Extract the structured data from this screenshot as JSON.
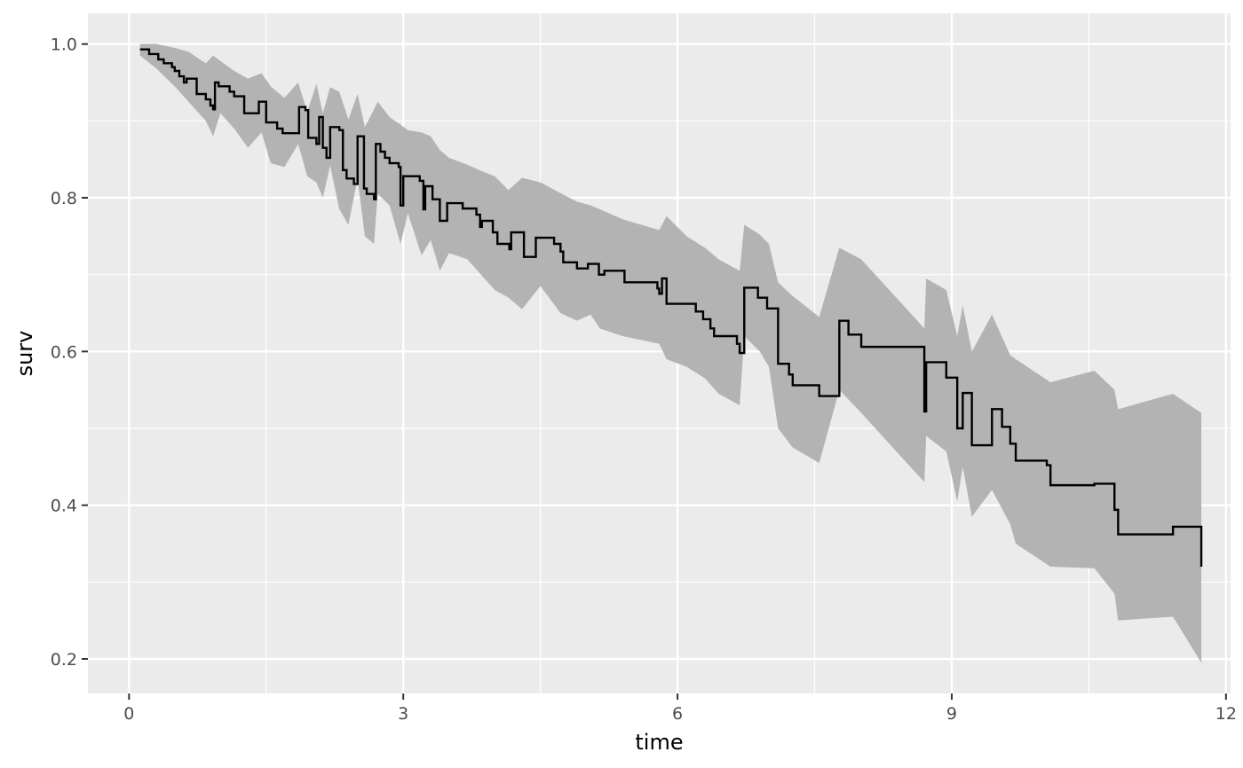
{
  "chart_data": {
    "type": "line",
    "title": "",
    "xlabel": "time",
    "ylabel": "surv",
    "xlim": [
      -0.45,
      12.05
    ],
    "ylim": [
      0.155,
      1.04
    ],
    "x_ticks": [
      0,
      3,
      6,
      9,
      12
    ],
    "y_ticks": [
      0.2,
      0.4,
      0.6,
      0.8,
      1.0
    ],
    "x_tick_labels": [
      "0",
      "3",
      "6",
      "9",
      "12"
    ],
    "y_tick_labels": [
      "0.2",
      "0.4",
      "0.6",
      "0.8",
      "1.0"
    ],
    "grid": true,
    "legend": "none",
    "colors": {
      "panel": "#EBEBEB",
      "grid": "#FFFFFF",
      "ribbon": "#B3B3B3",
      "line": "#000000"
    },
    "series": [
      {
        "values": [
          [
            0.12,
            0.993
          ],
          [
            0.22,
            0.987
          ],
          [
            0.32,
            0.98
          ],
          [
            0.38,
            0.975
          ],
          [
            0.47,
            0.97
          ],
          [
            0.5,
            0.965
          ],
          [
            0.55,
            0.958
          ],
          [
            0.6,
            0.95
          ],
          [
            0.63,
            0.955
          ],
          [
            0.74,
            0.935
          ],
          [
            0.84,
            0.928
          ],
          [
            0.89,
            0.92
          ],
          [
            0.92,
            0.915
          ],
          [
            0.94,
            0.95
          ],
          [
            0.98,
            0.945
          ],
          [
            1.1,
            0.938
          ],
          [
            1.15,
            0.932
          ],
          [
            1.26,
            0.91
          ],
          [
            1.42,
            0.925
          ],
          [
            1.5,
            0.898
          ],
          [
            1.62,
            0.89
          ],
          [
            1.68,
            0.884
          ],
          [
            1.86,
            0.918
          ],
          [
            1.93,
            0.914
          ],
          [
            1.96,
            0.878
          ],
          [
            2.05,
            0.87
          ],
          [
            2.08,
            0.905
          ],
          [
            2.12,
            0.865
          ],
          [
            2.16,
            0.852
          ],
          [
            2.2,
            0.892
          ],
          [
            2.3,
            0.888
          ],
          [
            2.34,
            0.836
          ],
          [
            2.38,
            0.825
          ],
          [
            2.46,
            0.818
          ],
          [
            2.5,
            0.88
          ],
          [
            2.57,
            0.812
          ],
          [
            2.6,
            0.805
          ],
          [
            2.68,
            0.798
          ],
          [
            2.7,
            0.87
          ],
          [
            2.75,
            0.86
          ],
          [
            2.8,
            0.852
          ],
          [
            2.85,
            0.845
          ],
          [
            2.95,
            0.84
          ],
          [
            2.97,
            0.79
          ],
          [
            3.0,
            0.828
          ],
          [
            3.18,
            0.822
          ],
          [
            3.22,
            0.785
          ],
          [
            3.24,
            0.815
          ],
          [
            3.32,
            0.798
          ],
          [
            3.4,
            0.77
          ],
          [
            3.48,
            0.793
          ],
          [
            3.65,
            0.786
          ],
          [
            3.8,
            0.778
          ],
          [
            3.84,
            0.762
          ],
          [
            3.86,
            0.77
          ],
          [
            3.98,
            0.755
          ],
          [
            4.03,
            0.74
          ],
          [
            4.16,
            0.733
          ],
          [
            4.18,
            0.755
          ],
          [
            4.32,
            0.723
          ],
          [
            4.45,
            0.748
          ],
          [
            4.65,
            0.74
          ],
          [
            4.72,
            0.73
          ],
          [
            4.75,
            0.716
          ],
          [
            4.9,
            0.708
          ],
          [
            5.02,
            0.714
          ],
          [
            5.14,
            0.7
          ],
          [
            5.2,
            0.705
          ],
          [
            5.42,
            0.69
          ],
          [
            5.78,
            0.682
          ],
          [
            5.8,
            0.675
          ],
          [
            5.83,
            0.695
          ],
          [
            5.88,
            0.662
          ],
          [
            6.2,
            0.652
          ],
          [
            6.28,
            0.642
          ],
          [
            6.36,
            0.63
          ],
          [
            6.4,
            0.62
          ],
          [
            6.65,
            0.61
          ],
          [
            6.68,
            0.598
          ],
          [
            6.73,
            0.683
          ],
          [
            6.88,
            0.67
          ],
          [
            6.98,
            0.656
          ],
          [
            7.1,
            0.584
          ],
          [
            7.22,
            0.57
          ],
          [
            7.26,
            0.556
          ],
          [
            7.55,
            0.542
          ],
          [
            7.77,
            0.64
          ],
          [
            7.87,
            0.622
          ],
          [
            8.01,
            0.606
          ],
          [
            8.7,
            0.522
          ],
          [
            8.72,
            0.586
          ],
          [
            8.94,
            0.566
          ],
          [
            9.06,
            0.5
          ],
          [
            9.12,
            0.546
          ],
          [
            9.22,
            0.478
          ],
          [
            9.44,
            0.525
          ],
          [
            9.55,
            0.502
          ],
          [
            9.64,
            0.48
          ],
          [
            9.7,
            0.458
          ],
          [
            10.04,
            0.452
          ],
          [
            10.08,
            0.426
          ],
          [
            10.56,
            0.428
          ],
          [
            10.78,
            0.394
          ],
          [
            10.82,
            0.362
          ],
          [
            11.42,
            0.372
          ],
          [
            11.73,
            0.32
          ]
        ],
        "ribbon": [
          [
            0.12,
            0.985,
            1.0
          ],
          [
            0.3,
            0.968,
            1.0
          ],
          [
            0.5,
            0.945,
            0.995
          ],
          [
            0.65,
            0.925,
            0.99
          ],
          [
            0.84,
            0.9,
            0.975
          ],
          [
            0.92,
            0.88,
            0.985
          ],
          [
            1.0,
            0.91,
            0.978
          ],
          [
            1.15,
            0.89,
            0.965
          ],
          [
            1.3,
            0.865,
            0.955
          ],
          [
            1.45,
            0.885,
            0.962
          ],
          [
            1.55,
            0.845,
            0.945
          ],
          [
            1.7,
            0.84,
            0.93
          ],
          [
            1.85,
            0.87,
            0.95
          ],
          [
            1.95,
            0.828,
            0.912
          ],
          [
            2.05,
            0.82,
            0.948
          ],
          [
            2.12,
            0.8,
            0.91
          ],
          [
            2.2,
            0.842,
            0.944
          ],
          [
            2.3,
            0.785,
            0.938
          ],
          [
            2.4,
            0.765,
            0.902
          ],
          [
            2.5,
            0.825,
            0.935
          ],
          [
            2.58,
            0.75,
            0.892
          ],
          [
            2.68,
            0.74,
            0.915
          ],
          [
            2.72,
            0.805,
            0.925
          ],
          [
            2.85,
            0.79,
            0.905
          ],
          [
            2.97,
            0.74,
            0.895
          ],
          [
            3.05,
            0.78,
            0.888
          ],
          [
            3.2,
            0.725,
            0.885
          ],
          [
            3.3,
            0.745,
            0.88
          ],
          [
            3.4,
            0.705,
            0.862
          ],
          [
            3.5,
            0.728,
            0.852
          ],
          [
            3.7,
            0.72,
            0.843
          ],
          [
            3.85,
            0.7,
            0.835
          ],
          [
            4.0,
            0.68,
            0.828
          ],
          [
            4.15,
            0.67,
            0.81
          ],
          [
            4.3,
            0.655,
            0.826
          ],
          [
            4.5,
            0.685,
            0.82
          ],
          [
            4.72,
            0.65,
            0.806
          ],
          [
            4.9,
            0.64,
            0.795
          ],
          [
            5.05,
            0.648,
            0.79
          ],
          [
            5.15,
            0.63,
            0.785
          ],
          [
            5.4,
            0.62,
            0.772
          ],
          [
            5.8,
            0.61,
            0.758
          ],
          [
            5.88,
            0.59,
            0.776
          ],
          [
            6.1,
            0.58,
            0.75
          ],
          [
            6.3,
            0.565,
            0.735
          ],
          [
            6.45,
            0.545,
            0.72
          ],
          [
            6.68,
            0.53,
            0.705
          ],
          [
            6.73,
            0.62,
            0.765
          ],
          [
            6.9,
            0.6,
            0.752
          ],
          [
            7.0,
            0.58,
            0.74
          ],
          [
            7.1,
            0.5,
            0.69
          ],
          [
            7.26,
            0.475,
            0.672
          ],
          [
            7.55,
            0.455,
            0.645
          ],
          [
            7.77,
            0.55,
            0.735
          ],
          [
            8.01,
            0.52,
            0.72
          ],
          [
            8.7,
            0.43,
            0.63
          ],
          [
            8.72,
            0.49,
            0.695
          ],
          [
            8.94,
            0.47,
            0.68
          ],
          [
            9.06,
            0.405,
            0.62
          ],
          [
            9.12,
            0.45,
            0.66
          ],
          [
            9.22,
            0.385,
            0.6
          ],
          [
            9.44,
            0.42,
            0.648
          ],
          [
            9.64,
            0.375,
            0.595
          ],
          [
            9.7,
            0.35,
            0.59
          ],
          [
            10.08,
            0.32,
            0.56
          ],
          [
            10.56,
            0.318,
            0.575
          ],
          [
            10.78,
            0.285,
            0.55
          ],
          [
            10.82,
            0.25,
            0.525
          ],
          [
            11.42,
            0.255,
            0.545
          ],
          [
            11.73,
            0.195,
            0.52
          ]
        ]
      }
    ]
  }
}
